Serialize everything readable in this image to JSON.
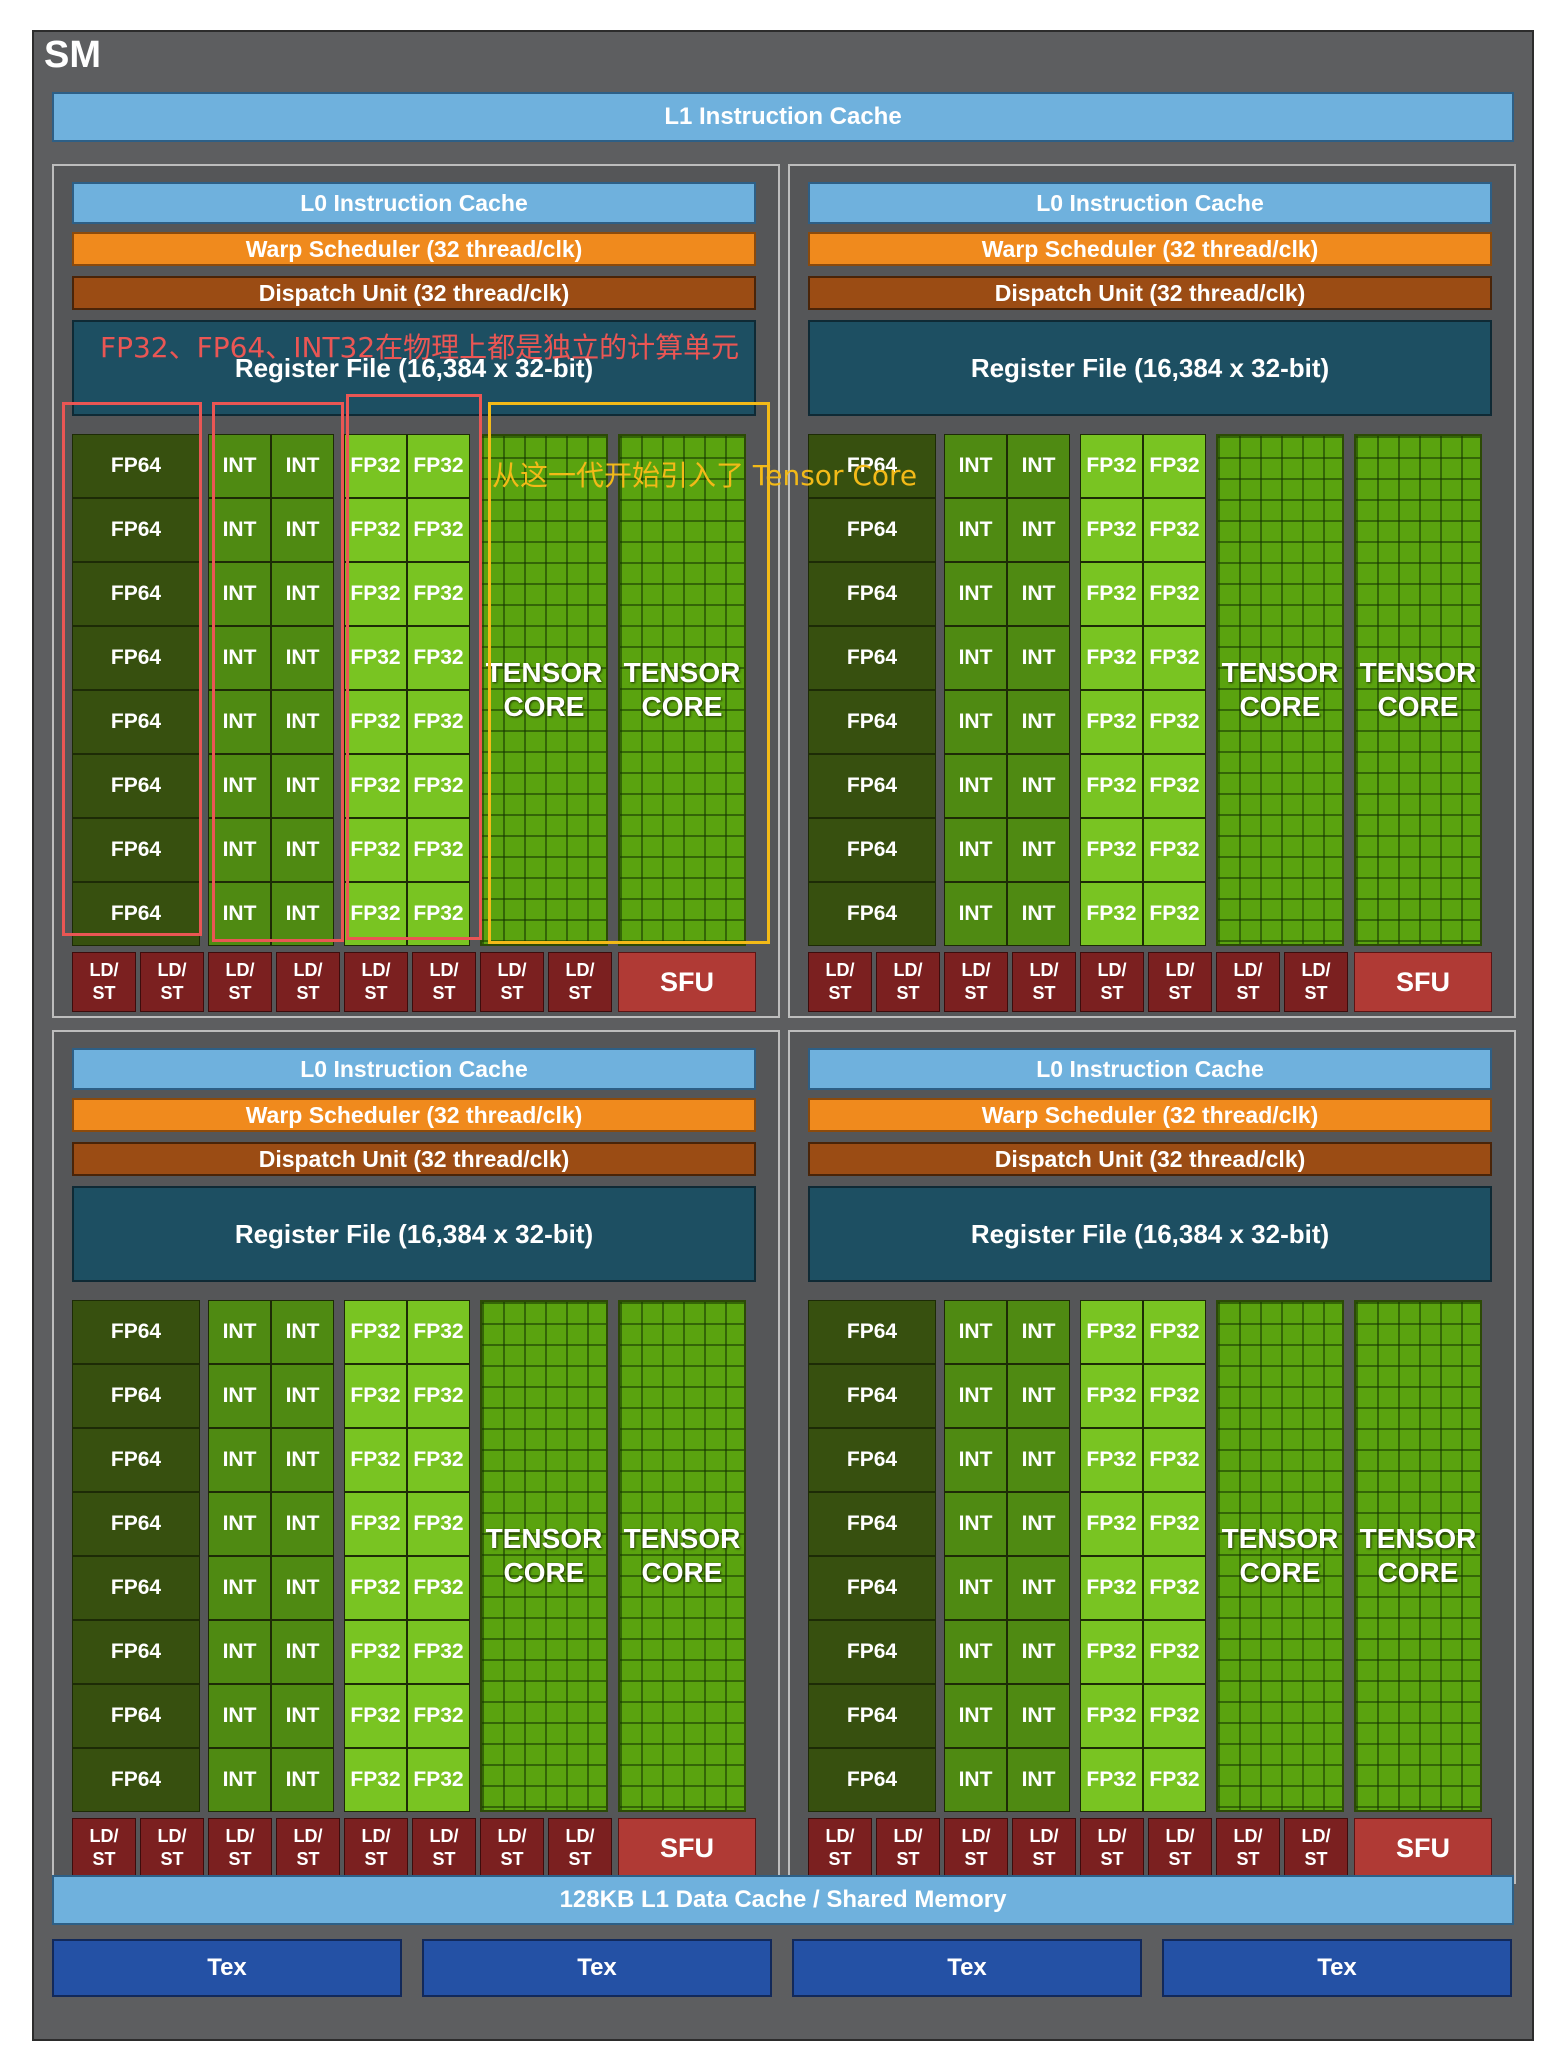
{
  "sm": {
    "title": "SM",
    "l1_instruction_cache": "L1 Instruction Cache",
    "l1_data_cache": "128KB L1 Data Cache / Shared Memory",
    "tex_units": [
      "Tex",
      "Tex",
      "Tex",
      "Tex"
    ]
  },
  "partition": {
    "l0_cache": "L0 Instruction Cache",
    "warp_scheduler": "Warp Scheduler (32 thread/clk)",
    "dispatch_unit": "Dispatch Unit (32 thread/clk)",
    "register_file": "Register File (16,384 x 32-bit)",
    "fp64": "FP64",
    "int": "INT",
    "fp32": "FP32",
    "tensor_line1": "TENSOR",
    "tensor_line2": "CORE",
    "ldst_line1": "LD/",
    "ldst_line2": "ST",
    "sfu": "SFU",
    "rows": 8,
    "ldst_count": 8
  },
  "annotations": {
    "red_note": "FP32、FP64、INT32在物理上都是独立的计算单元",
    "yellow_note": "从这一代开始引入了 Tensor Core",
    "red_color": "#ea5654",
    "yellow_color": "#f3ba18"
  },
  "colors": {
    "l1": "#6fb1dd",
    "warp": "#f08a1d",
    "dispatch": "#9b4c14",
    "register": "#1d4f62",
    "fp64": "#37500f",
    "int": "#4f8a12",
    "fp32": "#79c422",
    "tensor": "#5aa30f",
    "ldst": "#7b2020",
    "sfu": "#b03a35",
    "tex": "#2451a5"
  }
}
